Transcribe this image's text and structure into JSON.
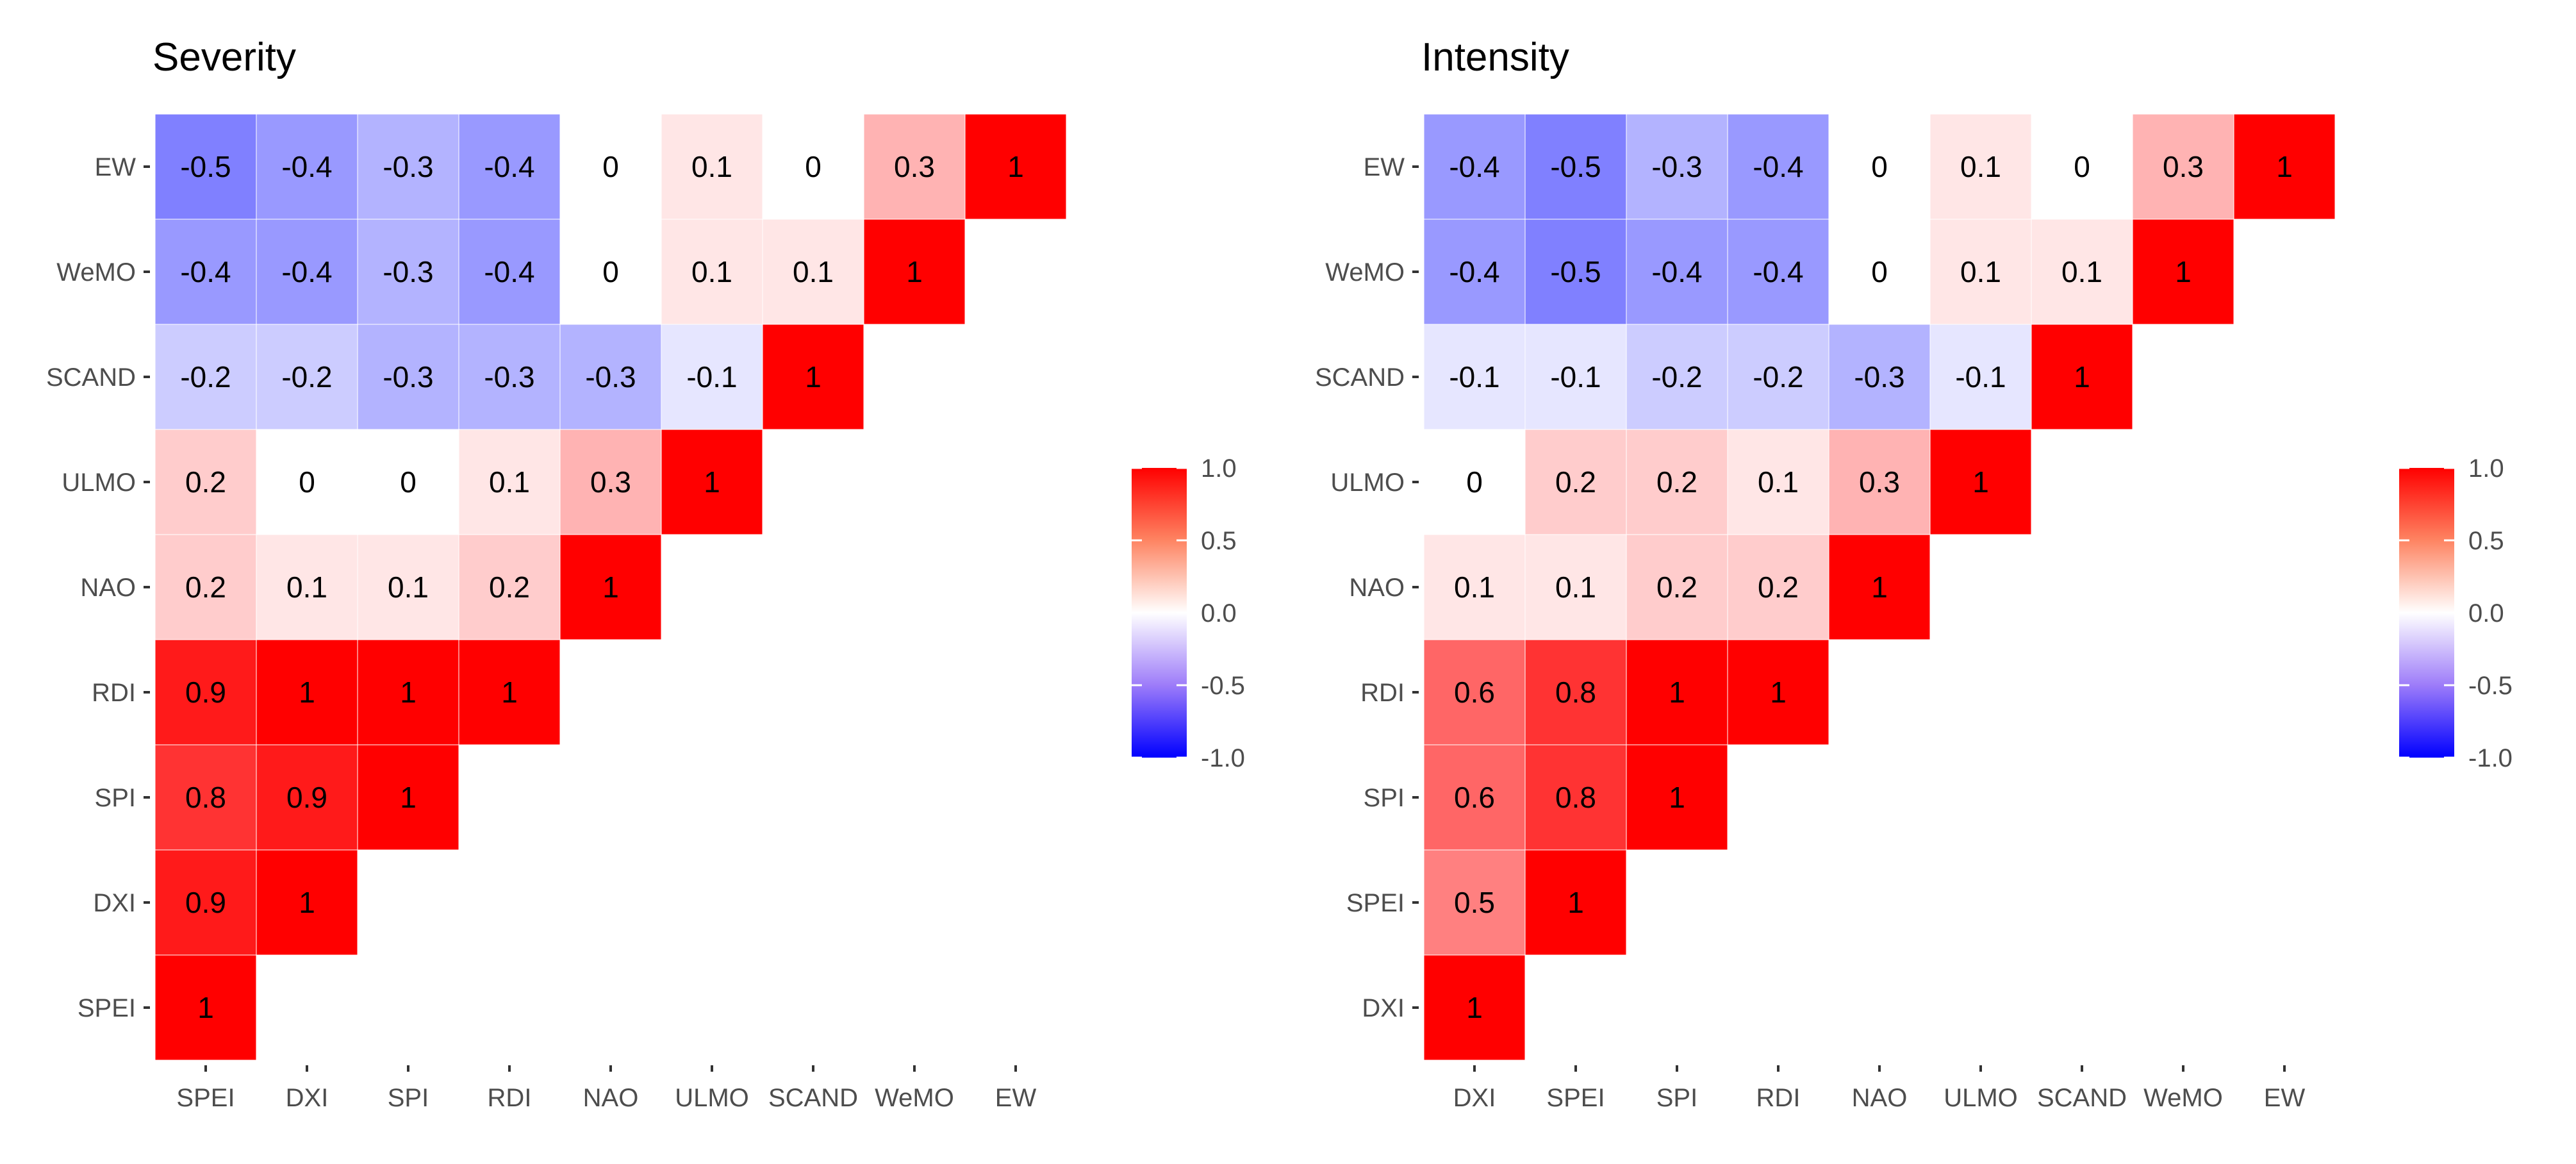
{
  "chart_data": [
    {
      "type": "heatmap",
      "title": "Severity",
      "variables": [
        "SPEI",
        "DXI",
        "SPI",
        "RDI",
        "NAO",
        "ULMO",
        "SCAND",
        "WeMO",
        "EW"
      ],
      "x_tick_labels": [
        "SPEI",
        "DXI",
        "SPI",
        "RDI",
        "NAO",
        "ULMO",
        "SCAND",
        "WeMO",
        "EW"
      ],
      "y_tick_labels": [
        "SPEI",
        "DXI",
        "SPI",
        "RDI",
        "NAO",
        "ULMO",
        "SCAND",
        "WeMO",
        "EW"
      ],
      "matrix_lower_triangle_by_row": [
        [
          1
        ],
        [
          0.9,
          1
        ],
        [
          0.8,
          0.9,
          1
        ],
        [
          0.9,
          1,
          1,
          1
        ],
        [
          0.2,
          0.1,
          0.1,
          0.2,
          1
        ],
        [
          0.2,
          0,
          0,
          0.1,
          0.3,
          1
        ],
        [
          -0.2,
          -0.2,
          -0.3,
          -0.3,
          -0.3,
          -0.1,
          1
        ],
        [
          -0.4,
          -0.4,
          -0.3,
          -0.4,
          0,
          0.1,
          0.1,
          1
        ],
        [
          -0.5,
          -0.4,
          -0.3,
          -0.4,
          0,
          0.1,
          0,
          0.3,
          1
        ]
      ],
      "cell_labels_lower_triangle_by_row": [
        [
          "1"
        ],
        [
          "0.9",
          "1"
        ],
        [
          "0.8",
          "0.9",
          "1"
        ],
        [
          "0.9",
          "1",
          "1",
          "1"
        ],
        [
          "0.2",
          "0.1",
          "0.1",
          "0.2",
          "1"
        ],
        [
          "0.2",
          "0",
          "0",
          "0.1",
          "0.3",
          "1"
        ],
        [
          "-0.2",
          "-0.2",
          "-0.3",
          "-0.3",
          "-0.3",
          "-0.1",
          "1"
        ],
        [
          "-0.4",
          "-0.4",
          "-0.3",
          "-0.4",
          "0",
          "0.1",
          "0.1",
          "1"
        ],
        [
          "-0.5",
          "-0.4",
          "-0.3",
          "-0.4",
          "0",
          "0.1",
          "0",
          "0.3",
          "1"
        ]
      ],
      "legend": {
        "ticks": [
          1.0,
          0.5,
          0.0,
          -0.5,
          -1.0
        ],
        "tick_labels": [
          "1.0",
          "0.5",
          "0.0",
          "-0.5",
          "-1.0"
        ],
        "range": [
          -1,
          1
        ]
      }
    },
    {
      "type": "heatmap",
      "title": "Intensity",
      "variables": [
        "DXI",
        "SPEI",
        "SPI",
        "RDI",
        "NAO",
        "ULMO",
        "SCAND",
        "WeMO",
        "EW"
      ],
      "x_tick_labels": [
        "DXI",
        "SPEI",
        "SPI",
        "RDI",
        "NAO",
        "ULMO",
        "SCAND",
        "WeMO",
        "EW"
      ],
      "y_tick_labels": [
        "DXI",
        "SPEI",
        "SPI",
        "RDI",
        "NAO",
        "ULMO",
        "SCAND",
        "WeMO",
        "EW"
      ],
      "matrix_lower_triangle_by_row": [
        [
          1
        ],
        [
          0.5,
          1
        ],
        [
          0.6,
          0.8,
          1
        ],
        [
          0.6,
          0.8,
          1,
          1
        ],
        [
          0.1,
          0.1,
          0.2,
          0.2,
          1
        ],
        [
          0,
          0.2,
          0.2,
          0.1,
          0.3,
          1
        ],
        [
          -0.1,
          -0.1,
          -0.2,
          -0.2,
          -0.3,
          -0.1,
          1
        ],
        [
          -0.4,
          -0.5,
          -0.4,
          -0.4,
          0,
          0.1,
          0.1,
          1
        ],
        [
          -0.4,
          -0.5,
          -0.3,
          -0.4,
          0,
          0.1,
          0,
          0.3,
          1
        ]
      ],
      "cell_labels_lower_triangle_by_row": [
        [
          "1"
        ],
        [
          "0.5",
          "1"
        ],
        [
          "0.6",
          "0.8",
          "1"
        ],
        [
          "0.6",
          "0.8",
          "1",
          "1"
        ],
        [
          "0.1",
          "0.1",
          "0.2",
          "0.2",
          "1"
        ],
        [
          "0",
          "0.2",
          "0.2",
          "0.1",
          "0.3",
          "1"
        ],
        [
          "-0.1",
          "-0.1",
          "-0.2",
          "-0.2",
          "-0.3",
          "-0.1",
          "1"
        ],
        [
          "-0.4",
          "-0.5",
          "-0.4",
          "-0.4",
          "0",
          "0.1",
          "0.1",
          "1"
        ],
        [
          "-0.4",
          "-0.5",
          "-0.3",
          "-0.4",
          "0",
          "0.1",
          "0",
          "0.3",
          "1"
        ]
      ],
      "legend": {
        "ticks": [
          1.0,
          0.5,
          0.0,
          -0.5,
          -1.0
        ],
        "tick_labels": [
          "1.0",
          "0.5",
          "0.0",
          "-0.5",
          "-1.0"
        ],
        "range": [
          -1,
          1
        ]
      }
    }
  ],
  "colors": {
    "positive": "#ff0000",
    "neutral": "#ffffff",
    "negative": "#0000ff",
    "text": "#000000",
    "axis_text": "#4d4d4d",
    "tick": "#333333"
  }
}
